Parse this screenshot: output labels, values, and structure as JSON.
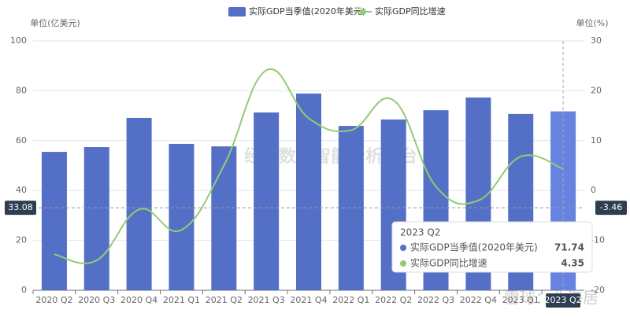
{
  "chart_data": {
    "type": "bar-line",
    "y_label": "单位(亿美元)",
    "y2_label": "单位(%)",
    "categories": [
      "2020 Q2",
      "2020 Q3",
      "2020 Q4",
      "2021 Q1",
      "2021 Q2",
      "2021 Q3",
      "2021 Q4",
      "2022 Q1",
      "2022 Q2",
      "2022 Q3",
      "2022 Q4",
      "2023 Q1",
      "2023 Q2"
    ],
    "series": [
      {
        "name": "实际GDP当季值(2020年美元)",
        "type": "bar",
        "color": "#5470c6",
        "values": [
          55.5,
          57.4,
          69.1,
          58.7,
          57.7,
          71.3,
          78.9,
          65.9,
          68.5,
          72.2,
          77.3,
          70.7,
          71.74
        ]
      },
      {
        "name": "实际GDP同比增速",
        "type": "line",
        "axis": "y2",
        "color": "#91cc75",
        "values": [
          -12.8,
          -14.0,
          -3.8,
          -7.9,
          5.0,
          24.1,
          14.5,
          12.1,
          18.1,
          0.8,
          -2.0,
          6.8,
          4.35
        ]
      }
    ],
    "ylim": [
      0,
      100
    ],
    "yticks": [
      0,
      20,
      40,
      60,
      80,
      100
    ],
    "y2lim": [
      -20,
      30
    ],
    "y2ticks": [
      -20,
      -10,
      0,
      10,
      20,
      30
    ],
    "grid": true,
    "axis_pointer": {
      "y": 33.08,
      "y2": -3.46
    },
    "tooltip": {
      "title": "2023 Q2"
    },
    "watermarks": [
      "经济数据智能分析平台",
      "雪球：北海居"
    ]
  }
}
